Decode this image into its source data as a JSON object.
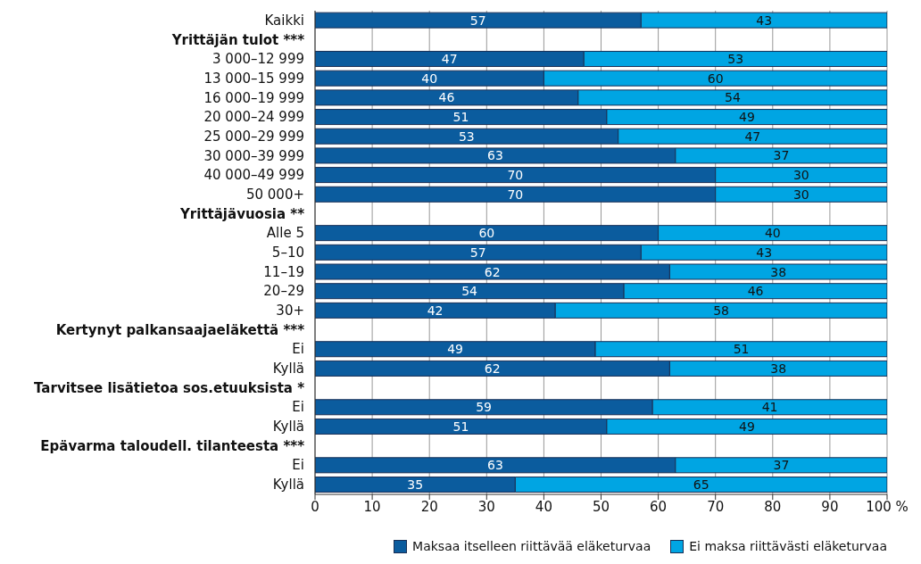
{
  "chart_data": {
    "type": "bar",
    "orientation": "horizontal",
    "stacked": true,
    "categories": [
      "Kaikki",
      "Yrittäjän tulot ***",
      "3 000–12 999",
      "13 000–15 999",
      "16 000–19 999",
      "20 000–24 999",
      "25 000–29 999",
      "30 000–39 999",
      "40 000–49 999",
      "50 000+",
      "Yrittäjävuosia **",
      "Alle 5",
      "5–10",
      "11–19",
      "20–29",
      "30+",
      "Kertynyt palkansaajaeläkettä ***",
      "Ei",
      "Kyllä",
      "Tarvitsee lisätietoa sos.etuuksista *",
      "Ei",
      "Kyllä",
      "Epävarma taloudell. tilanteesta ***",
      "Ei",
      "Kyllä"
    ],
    "series": [
      {
        "name": "Maksaa itselleen riittävää eläketurvaa",
        "color": "#0b5c9e",
        "values": [
          57,
          null,
          47,
          40,
          46,
          51,
          53,
          63,
          70,
          70,
          null,
          60,
          57,
          62,
          54,
          42,
          null,
          49,
          62,
          null,
          59,
          51,
          null,
          63,
          35
        ]
      },
      {
        "name": "Ei maksa riittävästi eläketurvaa",
        "color": "#00a5e3",
        "values": [
          43,
          null,
          53,
          60,
          54,
          49,
          47,
          37,
          30,
          30,
          null,
          40,
          43,
          38,
          46,
          58,
          null,
          51,
          38,
          null,
          41,
          49,
          null,
          37,
          65
        ]
      }
    ],
    "xlim": [
      0,
      100
    ],
    "xticks": [
      0,
      10,
      20,
      30,
      40,
      50,
      60,
      70,
      80,
      90,
      {
        "value": 100,
        "label": "100 %"
      }
    ],
    "grid": "x",
    "legend": "bottom",
    "data_labels": true
  }
}
